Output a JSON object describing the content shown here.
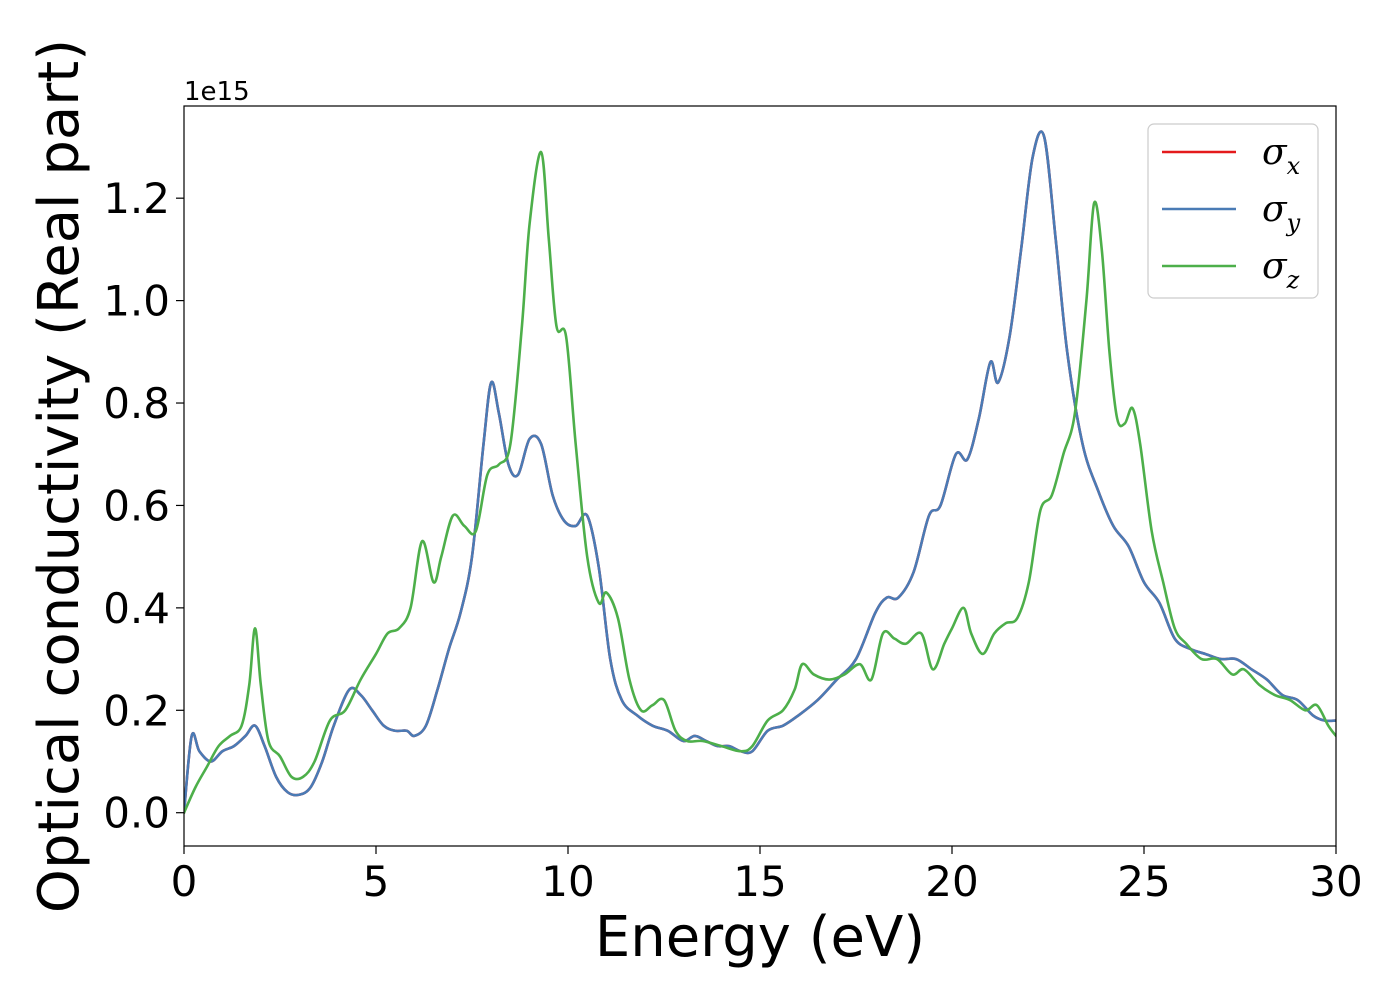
{
  "chart_data": {
    "type": "line",
    "title": "",
    "xlabel": "Energy (eV)",
    "ylabel": "Optical conductivity (Real part)",
    "y_offset_label": "1e15",
    "xlim": [
      0,
      30
    ],
    "ylim": [
      -0.065,
      1.38
    ],
    "xticks": [
      0,
      5,
      10,
      15,
      20,
      25,
      30
    ],
    "xtick_labels": [
      "0",
      "5",
      "10",
      "15",
      "20",
      "25",
      "30"
    ],
    "yticks": [
      0.0,
      0.2,
      0.4,
      0.6,
      0.8,
      1.0,
      1.2
    ],
    "ytick_labels": [
      "0.0",
      "0.2",
      "0.4",
      "0.6",
      "0.8",
      "1.0",
      "1.2"
    ],
    "grid": false,
    "legend_position": "top-right",
    "series": [
      {
        "name": "σx",
        "legend_symbol": "σ",
        "legend_subscript": "x",
        "color": "#e41a1c",
        "x": [
          0,
          0.2,
          0.4,
          0.7,
          1.0,
          1.3,
          1.6,
          1.85,
          2.1,
          2.4,
          2.7,
          3.0,
          3.3,
          3.6,
          3.9,
          4.3,
          4.6,
          4.9,
          5.2,
          5.5,
          5.8,
          6.0,
          6.3,
          6.6,
          6.9,
          7.2,
          7.5,
          7.8,
          8.0,
          8.2,
          8.45,
          8.7,
          9.0,
          9.3,
          9.6,
          9.9,
          10.2,
          10.5,
          10.8,
          11.1,
          11.4,
          11.8,
          12.2,
          12.6,
          13.0,
          13.3,
          13.6,
          13.9,
          14.2,
          14.5,
          14.8,
          15.2,
          15.6,
          16.0,
          16.5,
          17.0,
          17.5,
          18.0,
          18.3,
          18.6,
          19.0,
          19.4,
          19.7,
          20.1,
          20.4,
          20.7,
          21.0,
          21.2,
          21.5,
          21.8,
          22.1,
          22.4,
          22.7,
          23.0,
          23.4,
          23.8,
          24.2,
          24.6,
          25.0,
          25.4,
          25.8,
          26.2,
          26.6,
          27.0,
          27.4,
          27.8,
          28.2,
          28.6,
          29.0,
          29.4,
          29.7,
          30.0
        ],
        "y": [
          0.0,
          0.15,
          0.12,
          0.1,
          0.12,
          0.13,
          0.15,
          0.17,
          0.13,
          0.07,
          0.04,
          0.035,
          0.05,
          0.1,
          0.17,
          0.24,
          0.23,
          0.2,
          0.17,
          0.16,
          0.16,
          0.15,
          0.17,
          0.24,
          0.32,
          0.39,
          0.5,
          0.72,
          0.84,
          0.78,
          0.68,
          0.66,
          0.73,
          0.72,
          0.62,
          0.57,
          0.56,
          0.58,
          0.48,
          0.3,
          0.22,
          0.19,
          0.17,
          0.16,
          0.14,
          0.15,
          0.14,
          0.13,
          0.13,
          0.12,
          0.12,
          0.16,
          0.17,
          0.19,
          0.22,
          0.26,
          0.3,
          0.39,
          0.42,
          0.42,
          0.47,
          0.58,
          0.6,
          0.7,
          0.69,
          0.77,
          0.88,
          0.84,
          0.93,
          1.1,
          1.28,
          1.32,
          1.12,
          0.9,
          0.72,
          0.63,
          0.56,
          0.52,
          0.45,
          0.41,
          0.34,
          0.32,
          0.31,
          0.3,
          0.3,
          0.28,
          0.26,
          0.23,
          0.22,
          0.19,
          0.18,
          0.18
        ]
      },
      {
        "name": "σy",
        "legend_symbol": "σ",
        "legend_subscript": "y",
        "color": "#4a7bb5",
        "x": [
          0,
          0.2,
          0.4,
          0.7,
          1.0,
          1.3,
          1.6,
          1.85,
          2.1,
          2.4,
          2.7,
          3.0,
          3.3,
          3.6,
          3.9,
          4.3,
          4.6,
          4.9,
          5.2,
          5.5,
          5.8,
          6.0,
          6.3,
          6.6,
          6.9,
          7.2,
          7.5,
          7.8,
          8.0,
          8.2,
          8.45,
          8.7,
          9.0,
          9.3,
          9.6,
          9.9,
          10.2,
          10.5,
          10.8,
          11.1,
          11.4,
          11.8,
          12.2,
          12.6,
          13.0,
          13.3,
          13.6,
          13.9,
          14.2,
          14.5,
          14.8,
          15.2,
          15.6,
          16.0,
          16.5,
          17.0,
          17.5,
          18.0,
          18.3,
          18.6,
          19.0,
          19.4,
          19.7,
          20.1,
          20.4,
          20.7,
          21.0,
          21.2,
          21.5,
          21.8,
          22.1,
          22.4,
          22.7,
          23.0,
          23.4,
          23.8,
          24.2,
          24.6,
          25.0,
          25.4,
          25.8,
          26.2,
          26.6,
          27.0,
          27.4,
          27.8,
          28.2,
          28.6,
          29.0,
          29.4,
          29.7,
          30.0
        ],
        "y": [
          0.0,
          0.15,
          0.12,
          0.1,
          0.12,
          0.13,
          0.15,
          0.17,
          0.13,
          0.07,
          0.04,
          0.035,
          0.05,
          0.1,
          0.17,
          0.24,
          0.23,
          0.2,
          0.17,
          0.16,
          0.16,
          0.15,
          0.17,
          0.24,
          0.32,
          0.39,
          0.5,
          0.72,
          0.84,
          0.78,
          0.68,
          0.66,
          0.73,
          0.72,
          0.62,
          0.57,
          0.56,
          0.58,
          0.48,
          0.3,
          0.22,
          0.19,
          0.17,
          0.16,
          0.14,
          0.15,
          0.14,
          0.13,
          0.13,
          0.12,
          0.12,
          0.16,
          0.17,
          0.19,
          0.22,
          0.26,
          0.3,
          0.39,
          0.42,
          0.42,
          0.47,
          0.58,
          0.6,
          0.7,
          0.69,
          0.77,
          0.88,
          0.84,
          0.93,
          1.1,
          1.28,
          1.32,
          1.12,
          0.9,
          0.72,
          0.63,
          0.56,
          0.52,
          0.45,
          0.41,
          0.34,
          0.32,
          0.31,
          0.3,
          0.3,
          0.28,
          0.26,
          0.23,
          0.22,
          0.19,
          0.18,
          0.18
        ]
      },
      {
        "name": "σz",
        "legend_symbol": "σ",
        "legend_subscript": "z",
        "color": "#4daf4a",
        "x": [
          0,
          0.3,
          0.6,
          0.9,
          1.2,
          1.5,
          1.7,
          1.85,
          2.0,
          2.2,
          2.5,
          2.8,
          3.1,
          3.4,
          3.8,
          4.2,
          4.6,
          5.0,
          5.3,
          5.6,
          5.9,
          6.2,
          6.5,
          6.7,
          7.0,
          7.3,
          7.6,
          7.9,
          8.2,
          8.5,
          8.8,
          9.0,
          9.3,
          9.5,
          9.7,
          9.95,
          10.2,
          10.5,
          10.8,
          11.0,
          11.3,
          11.6,
          11.9,
          12.2,
          12.5,
          12.8,
          13.1,
          13.5,
          14.0,
          14.5,
          14.8,
          15.2,
          15.6,
          15.9,
          16.1,
          16.4,
          16.8,
          17.2,
          17.6,
          17.9,
          18.2,
          18.5,
          18.8,
          19.2,
          19.5,
          19.8,
          20.0,
          20.3,
          20.5,
          20.8,
          21.1,
          21.4,
          21.7,
          22.0,
          22.3,
          22.6,
          22.9,
          23.2,
          23.5,
          23.7,
          23.9,
          24.1,
          24.3,
          24.5,
          24.7,
          24.9,
          25.2,
          25.5,
          25.8,
          26.1,
          26.5,
          26.9,
          27.3,
          27.6,
          28.0,
          28.4,
          28.8,
          29.2,
          29.5,
          29.8,
          30.0
        ],
        "y": [
          0.0,
          0.05,
          0.09,
          0.13,
          0.15,
          0.17,
          0.25,
          0.36,
          0.25,
          0.14,
          0.11,
          0.07,
          0.07,
          0.1,
          0.18,
          0.2,
          0.26,
          0.31,
          0.35,
          0.36,
          0.4,
          0.53,
          0.45,
          0.5,
          0.58,
          0.56,
          0.55,
          0.66,
          0.68,
          0.72,
          0.95,
          1.15,
          1.29,
          1.12,
          0.95,
          0.93,
          0.72,
          0.5,
          0.41,
          0.43,
          0.38,
          0.26,
          0.2,
          0.21,
          0.22,
          0.16,
          0.14,
          0.14,
          0.13,
          0.12,
          0.13,
          0.18,
          0.2,
          0.24,
          0.29,
          0.27,
          0.26,
          0.27,
          0.29,
          0.26,
          0.35,
          0.34,
          0.33,
          0.35,
          0.28,
          0.33,
          0.36,
          0.4,
          0.35,
          0.31,
          0.35,
          0.37,
          0.38,
          0.45,
          0.59,
          0.62,
          0.7,
          0.78,
          1.0,
          1.19,
          1.1,
          0.9,
          0.77,
          0.76,
          0.79,
          0.72,
          0.55,
          0.45,
          0.36,
          0.33,
          0.3,
          0.3,
          0.27,
          0.28,
          0.25,
          0.23,
          0.22,
          0.2,
          0.21,
          0.17,
          0.15
        ]
      }
    ]
  }
}
